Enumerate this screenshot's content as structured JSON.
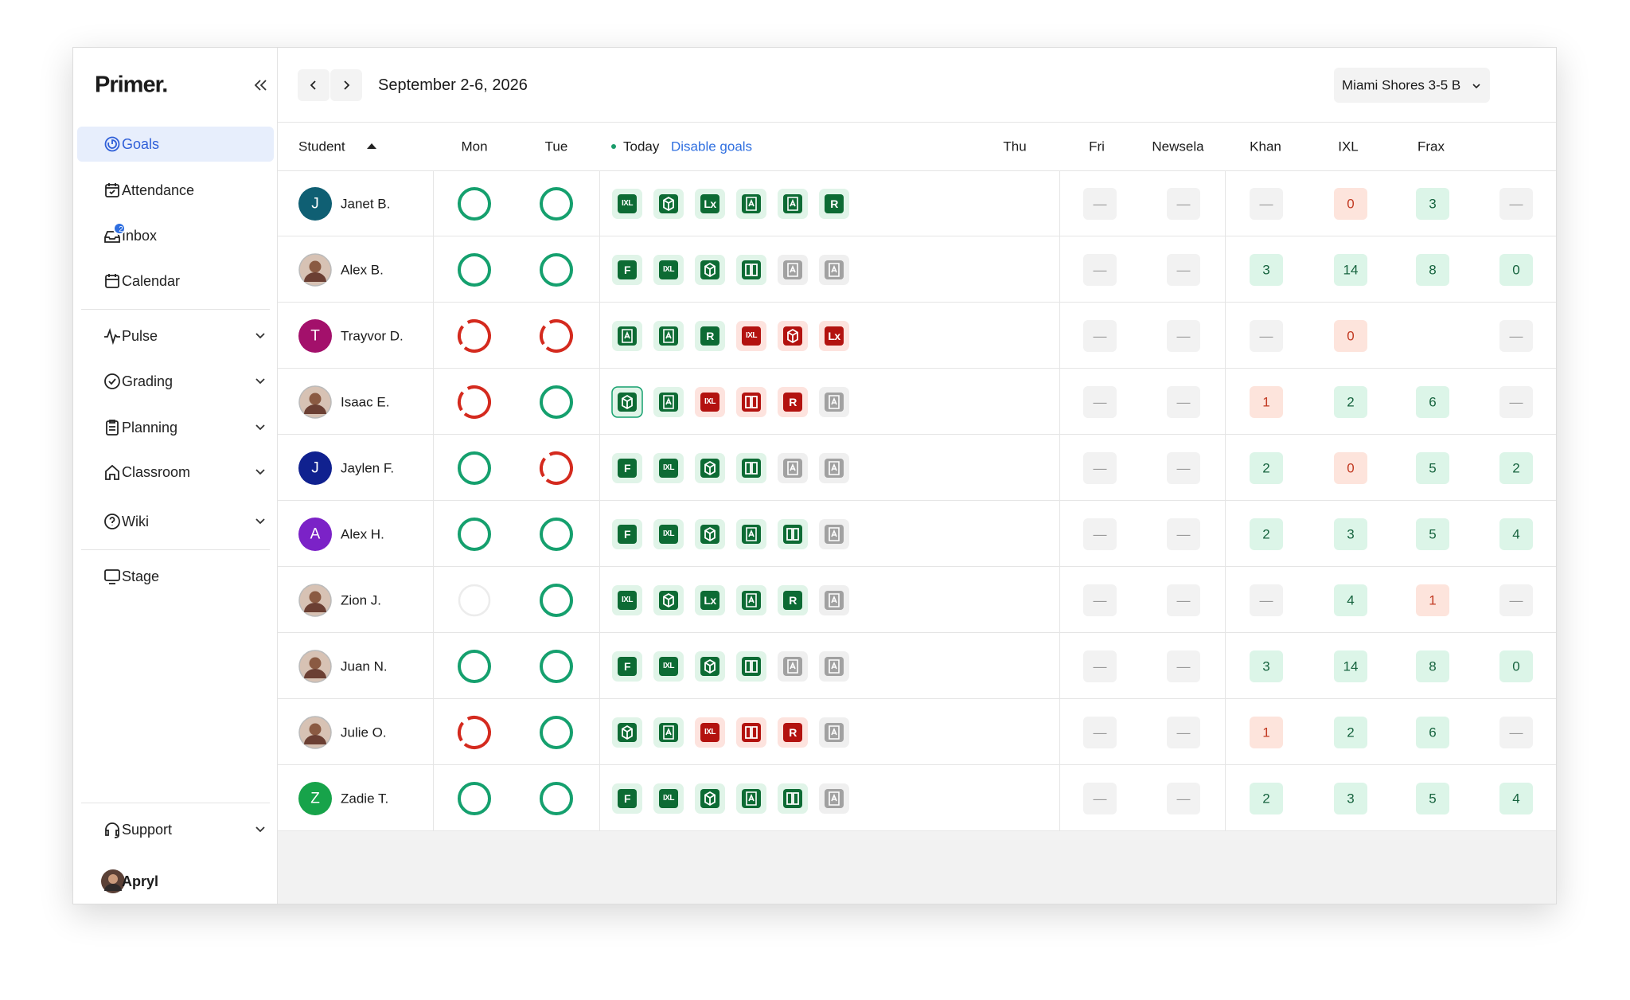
{
  "sidebar": {
    "logo": "Primer.",
    "nav": [
      {
        "label": "Goals",
        "active": true
      },
      {
        "label": "Attendance"
      },
      {
        "label": "Inbox",
        "badge": 2
      },
      {
        "label": "Calendar"
      },
      {
        "label": "Pulse",
        "expandable": true
      },
      {
        "label": "Grading",
        "expandable": true
      },
      {
        "label": "Planning",
        "expandable": true
      },
      {
        "label": "Classroom",
        "expandable": true
      },
      {
        "label": "Wiki",
        "expandable": true
      },
      {
        "label": "Stage"
      }
    ],
    "footer": [
      {
        "label": "Support",
        "expandable": true
      },
      {
        "label": "Apryl"
      }
    ]
  },
  "header": {
    "date_range": "September 2-6, 2026",
    "section": "Miami Shores 3-5 B"
  },
  "table": {
    "columns": [
      "Student",
      "Mon",
      "Tue",
      "Today",
      "Thu",
      "Fri",
      "Newsela",
      "Khan",
      "IXL",
      "Frax"
    ],
    "today_action": "Disable goals",
    "rows": [
      {
        "name": "Janet B.",
        "avatar": "J",
        "avatar_color": "#0f5f73",
        "mon": "done",
        "tue": "done",
        "today": [
          {
            "label": "IXL",
            "tone": "green"
          },
          {
            "glyph": "hex",
            "tone": "green"
          },
          {
            "label": "Lx",
            "tone": "green"
          },
          {
            "glyph": "doc",
            "tone": "green"
          },
          {
            "glyph": "doc",
            "tone": "green"
          },
          {
            "label": "R",
            "tone": "green"
          }
        ],
        "cells": [
          "—",
          "—",
          "—",
          0,
          3,
          "—"
        ],
        "cell_tones": [
          "none",
          "none",
          "none",
          "bad",
          "good",
          "none"
        ]
      },
      {
        "name": "Alex B.",
        "avatar": null,
        "mon": "done",
        "tue": "done",
        "today": [
          {
            "label": "F",
            "tone": "green"
          },
          {
            "label": "IXL",
            "tone": "green"
          },
          {
            "glyph": "hex",
            "tone": "green"
          },
          {
            "glyph": "book",
            "tone": "green"
          },
          {
            "glyph": "doc",
            "tone": "gray"
          },
          {
            "glyph": "doc",
            "tone": "gray"
          }
        ],
        "cells": [
          "—",
          "—",
          3,
          14,
          8,
          0
        ],
        "cell_tones": [
          "none",
          "none",
          "good",
          "good",
          "good",
          "good"
        ]
      },
      {
        "name": "Trayvor D.",
        "avatar": "T",
        "avatar_color": "#a3106b",
        "mon": "partial",
        "tue": "partial",
        "today": [
          {
            "glyph": "doc",
            "tone": "green"
          },
          {
            "glyph": "doc",
            "tone": "green"
          },
          {
            "label": "R",
            "tone": "green"
          },
          {
            "label": "IXL",
            "tone": "red"
          },
          {
            "glyph": "hex",
            "tone": "red"
          },
          {
            "label": "Lx",
            "tone": "red"
          }
        ],
        "cells": [
          "—",
          "—",
          "—",
          0,
          null,
          "—"
        ],
        "cell_tones": [
          "none",
          "none",
          "none",
          "bad",
          null,
          "none"
        ]
      },
      {
        "name": "Isaac E.",
        "avatar": null,
        "mon": "partial",
        "tue": "done",
        "today": [
          {
            "glyph": "hex",
            "tone": "green",
            "selected": true
          },
          {
            "glyph": "doc",
            "tone": "green"
          },
          {
            "label": "IXL",
            "tone": "red"
          },
          {
            "glyph": "book",
            "tone": "red"
          },
          {
            "label": "R",
            "tone": "red"
          },
          {
            "glyph": "doc",
            "tone": "gray"
          }
        ],
        "cells": [
          "—",
          "—",
          1,
          2,
          6,
          "—"
        ],
        "cell_tones": [
          "none",
          "none",
          "bad",
          "good",
          "good",
          "none"
        ]
      },
      {
        "name": "Jaylen F.",
        "avatar": "J",
        "avatar_color": "#10218f",
        "mon": "done",
        "tue": "partial",
        "today": [
          {
            "label": "F",
            "tone": "green"
          },
          {
            "label": "IXL",
            "tone": "green"
          },
          {
            "glyph": "hex",
            "tone": "green"
          },
          {
            "glyph": "book",
            "tone": "green"
          },
          {
            "glyph": "doc",
            "tone": "gray"
          },
          {
            "glyph": "doc",
            "tone": "gray"
          }
        ],
        "cells": [
          "—",
          "—",
          2,
          0,
          5,
          2
        ],
        "cell_tones": [
          "none",
          "none",
          "good",
          "bad",
          "good",
          "good"
        ]
      },
      {
        "name": "Alex H.",
        "avatar": "A",
        "avatar_color": "#7b22c7",
        "mon": "done",
        "tue": "done",
        "today": [
          {
            "label": "F",
            "tone": "green"
          },
          {
            "label": "IXL",
            "tone": "green"
          },
          {
            "glyph": "hex",
            "tone": "green"
          },
          {
            "glyph": "doc",
            "tone": "green"
          },
          {
            "glyph": "book",
            "tone": "green"
          },
          {
            "glyph": "doc",
            "tone": "gray"
          }
        ],
        "cells": [
          "—",
          "—",
          2,
          3,
          5,
          4
        ],
        "cell_tones": [
          "none",
          "none",
          "good",
          "good",
          "good",
          "good"
        ]
      },
      {
        "name": "Zion J.",
        "avatar": null,
        "mon": "none",
        "tue": "done",
        "today": [
          {
            "label": "IXL",
            "tone": "green"
          },
          {
            "glyph": "hex",
            "tone": "green"
          },
          {
            "label": "Lx",
            "tone": "green"
          },
          {
            "glyph": "doc",
            "tone": "green"
          },
          {
            "label": "R",
            "tone": "green"
          },
          {
            "glyph": "doc",
            "tone": "gray"
          }
        ],
        "cells": [
          "—",
          "—",
          "—",
          4,
          1,
          "—"
        ],
        "cell_tones": [
          "none",
          "none",
          "none",
          "good",
          "bad",
          "none"
        ]
      },
      {
        "name": "Juan N.",
        "avatar": null,
        "mon": "done",
        "tue": "done",
        "today": [
          {
            "label": "F",
            "tone": "green"
          },
          {
            "label": "IXL",
            "tone": "green"
          },
          {
            "glyph": "hex",
            "tone": "green"
          },
          {
            "glyph": "book",
            "tone": "green"
          },
          {
            "glyph": "doc",
            "tone": "gray"
          },
          {
            "glyph": "doc",
            "tone": "gray"
          }
        ],
        "cells": [
          "—",
          "—",
          3,
          14,
          8,
          0
        ],
        "cell_tones": [
          "none",
          "none",
          "good",
          "good",
          "good",
          "good"
        ]
      },
      {
        "name": "Julie O.",
        "avatar": null,
        "mon": "partial",
        "tue": "done",
        "today": [
          {
            "glyph": "hex",
            "tone": "green"
          },
          {
            "glyph": "doc",
            "tone": "green"
          },
          {
            "label": "IXL",
            "tone": "red"
          },
          {
            "glyph": "book",
            "tone": "red"
          },
          {
            "label": "R",
            "tone": "red"
          },
          {
            "glyph": "doc",
            "tone": "gray"
          }
        ],
        "cells": [
          "—",
          "—",
          1,
          2,
          6,
          "—"
        ],
        "cell_tones": [
          "none",
          "none",
          "bad",
          "good",
          "good",
          "none"
        ]
      },
      {
        "name": "Zadie T.",
        "avatar": "Z",
        "avatar_color": "#17a34a",
        "mon": "done",
        "tue": "done",
        "today": [
          {
            "label": "F",
            "tone": "green"
          },
          {
            "label": "IXL",
            "tone": "green"
          },
          {
            "glyph": "hex",
            "tone": "green"
          },
          {
            "glyph": "doc",
            "tone": "green"
          },
          {
            "glyph": "book",
            "tone": "green"
          },
          {
            "glyph": "doc",
            "tone": "gray"
          }
        ],
        "cells": [
          "—",
          "—",
          2,
          3,
          5,
          4
        ],
        "cell_tones": [
          "none",
          "none",
          "good",
          "good",
          "good",
          "good"
        ]
      }
    ]
  }
}
